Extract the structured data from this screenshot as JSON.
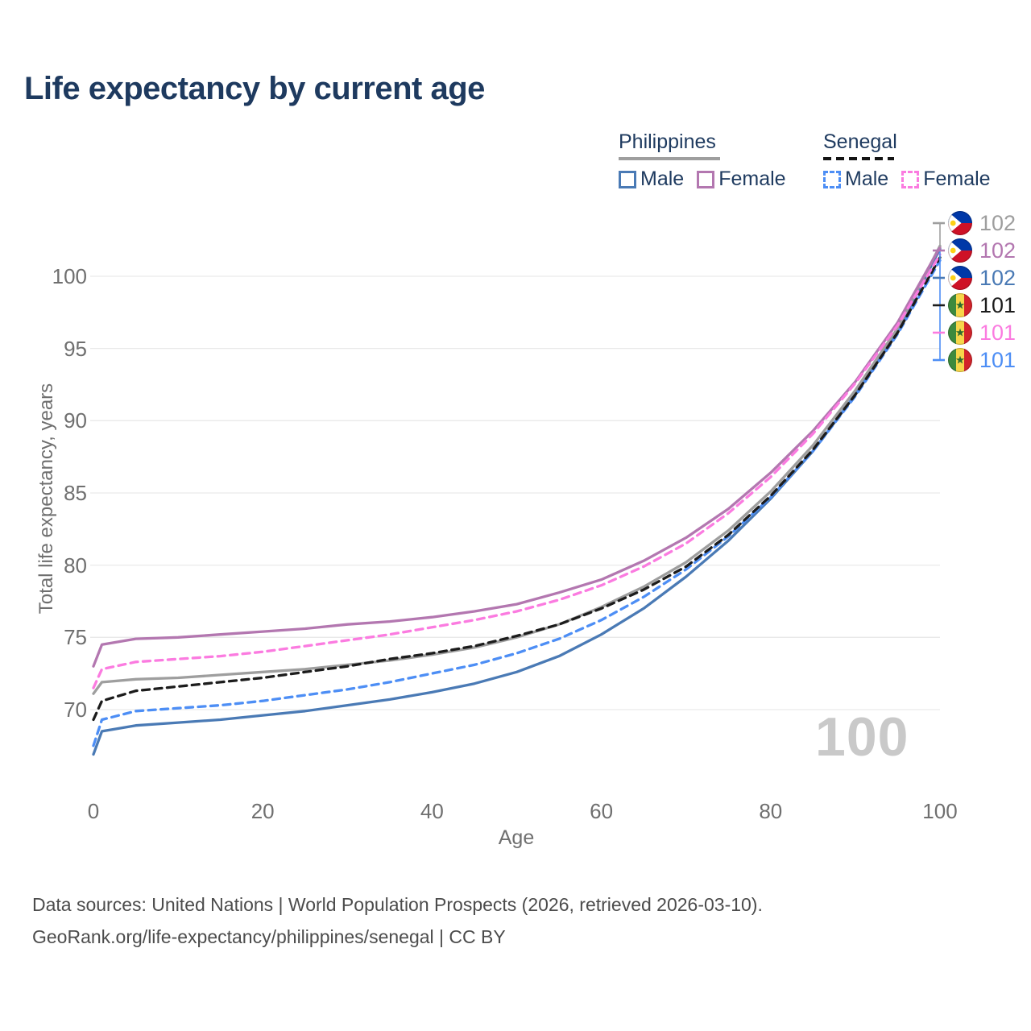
{
  "title": "Life expectancy by current age",
  "legend": {
    "groups": [
      {
        "id": "philippines",
        "label": "Philippines",
        "line_color": "#9e9e9e",
        "line_style": "solid",
        "items": [
          {
            "series": "ph_male",
            "label": "Male"
          },
          {
            "series": "ph_female",
            "label": "Female"
          }
        ]
      },
      {
        "id": "senegal",
        "label": "Senegal",
        "line_color": "#141414",
        "line_style": "dashed",
        "items": [
          {
            "series": "sn_male",
            "label": "Male"
          },
          {
            "series": "sn_female",
            "label": "Female"
          }
        ]
      }
    ]
  },
  "chart_data": {
    "type": "line",
    "title": "Life expectancy by current age",
    "xlabel": "Age",
    "ylabel": "Total life expectancy, years",
    "xlim": [
      0,
      100
    ],
    "ylim": [
      66,
      103.3
    ],
    "xticks": [
      0,
      20,
      40,
      60,
      80,
      100
    ],
    "yticks": [
      70,
      75,
      80,
      85,
      90,
      95,
      100
    ],
    "grid": "horizontal",
    "hover_age_label": "100",
    "x": [
      0,
      1,
      5,
      10,
      15,
      20,
      25,
      30,
      35,
      40,
      45,
      50,
      55,
      60,
      65,
      70,
      75,
      80,
      85,
      90,
      95,
      100
    ],
    "series": [
      {
        "id": "ph_male",
        "name": "Philippines Male",
        "color": "#4a7ab5",
        "dash": false,
        "values": [
          66.9,
          68.5,
          68.9,
          69.1,
          69.3,
          69.6,
          69.9,
          70.3,
          70.7,
          71.2,
          71.8,
          72.6,
          73.7,
          75.2,
          77.0,
          79.2,
          81.7,
          84.6,
          87.9,
          91.8,
          96.2,
          101.9
        ]
      },
      {
        "id": "ph_both",
        "name": "Philippines Both sexes",
        "color": "#9e9e9e",
        "dash": false,
        "values": [
          71.1,
          71.9,
          72.1,
          72.2,
          72.4,
          72.6,
          72.8,
          73.1,
          73.4,
          73.8,
          74.3,
          75.0,
          75.9,
          77.1,
          78.5,
          80.2,
          82.4,
          85.1,
          88.3,
          92.1,
          96.4,
          102.1
        ]
      },
      {
        "id": "ph_female",
        "name": "Philippines Female",
        "color": "#b377b0",
        "dash": false,
        "values": [
          73.0,
          74.5,
          74.9,
          75.0,
          75.2,
          75.4,
          75.6,
          75.9,
          76.1,
          76.4,
          76.8,
          77.3,
          78.1,
          79.0,
          80.3,
          81.9,
          83.9,
          86.4,
          89.3,
          92.7,
          96.8,
          102.0
        ]
      },
      {
        "id": "sn_male",
        "name": "Senegal Male",
        "color": "#4d8ef5",
        "dash": true,
        "values": [
          67.5,
          69.3,
          69.9,
          70.1,
          70.3,
          70.6,
          71.0,
          71.4,
          71.9,
          72.5,
          73.1,
          73.9,
          74.9,
          76.2,
          77.8,
          79.7,
          82.0,
          84.7,
          87.9,
          91.7,
          96.0,
          101.1
        ]
      },
      {
        "id": "sn_both",
        "name": "Senegal Both sexes",
        "color": "#1c1c1c",
        "dash": true,
        "values": [
          69.3,
          70.6,
          71.3,
          71.6,
          71.9,
          72.2,
          72.6,
          73.0,
          73.5,
          73.9,
          74.4,
          75.1,
          75.9,
          77.0,
          78.3,
          79.9,
          82.1,
          84.8,
          88.0,
          91.8,
          96.1,
          101.3
        ]
      },
      {
        "id": "sn_female",
        "name": "Senegal Female",
        "color": "#fb7be0",
        "dash": true,
        "values": [
          71.5,
          72.8,
          73.3,
          73.5,
          73.7,
          74.0,
          74.4,
          74.8,
          75.2,
          75.7,
          76.2,
          76.8,
          77.6,
          78.6,
          79.9,
          81.5,
          83.6,
          86.1,
          89.1,
          92.6,
          96.6,
          101.5
        ]
      }
    ],
    "end_labels": [
      {
        "flag": "philippines",
        "text": "102",
        "color": "#9e9e9e"
      },
      {
        "flag": "philippines",
        "text": "102",
        "color": "#b377b0"
      },
      {
        "flag": "philippines",
        "text": "102",
        "color": "#4a7ab5"
      },
      {
        "flag": "senegal",
        "text": "101",
        "color": "#1c1c1c"
      },
      {
        "flag": "senegal",
        "text": "101",
        "color": "#fb7be0"
      },
      {
        "flag": "senegal",
        "text": "101",
        "color": "#4d8ef5"
      }
    ]
  },
  "flags": {
    "philippines": {
      "blue": "#0038a8",
      "red": "#ce1126",
      "white": "#ffffff",
      "sun": "#fcd116"
    },
    "senegal": {
      "green": "#3d8a3d",
      "yellow": "#f7d64a",
      "red": "#d2232a",
      "star": "#2e6b2e"
    }
  },
  "footer": {
    "line1": "Data sources: United Nations | World Population Prospects (2026, retrieved 2026-03-10).",
    "line2": "GeoRank.org/life-expectancy/philippines/senegal | CC BY"
  }
}
